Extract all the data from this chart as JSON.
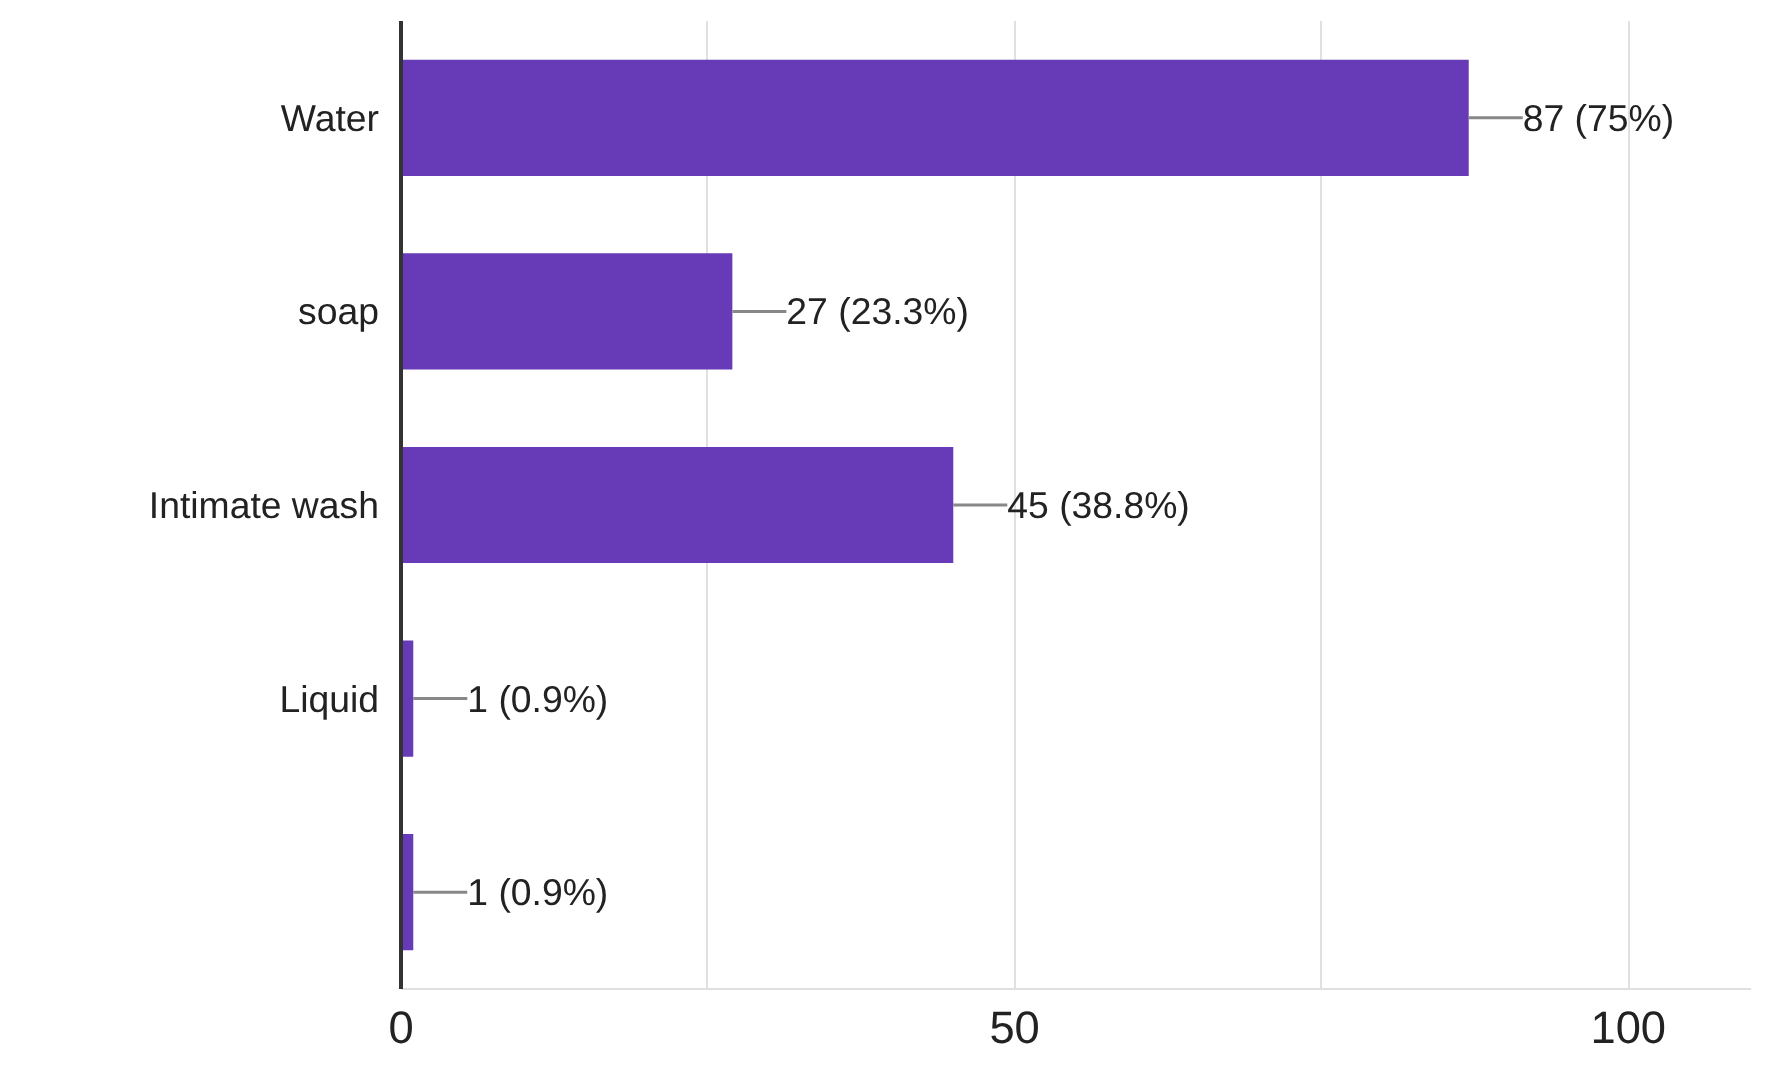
{
  "chart_data": {
    "type": "bar",
    "orientation": "horizontal",
    "categories": [
      "Water",
      "soap",
      "Intimate wash",
      "Liquid",
      null
    ],
    "values": [
      87,
      27,
      45,
      1,
      1
    ],
    "value_labels": [
      "87 (75%)",
      "27 (23.3%)",
      "45 (38.8%)",
      "1 (0.9%)",
      "1 (0.9%)"
    ],
    "color": "#673ab7",
    "xlim": [
      0,
      110
    ],
    "xticks": [
      0,
      {
        "value": 25,
        "label": null
      },
      50,
      {
        "value": 75,
        "label": null
      },
      100
    ],
    "grid": "x"
  }
}
